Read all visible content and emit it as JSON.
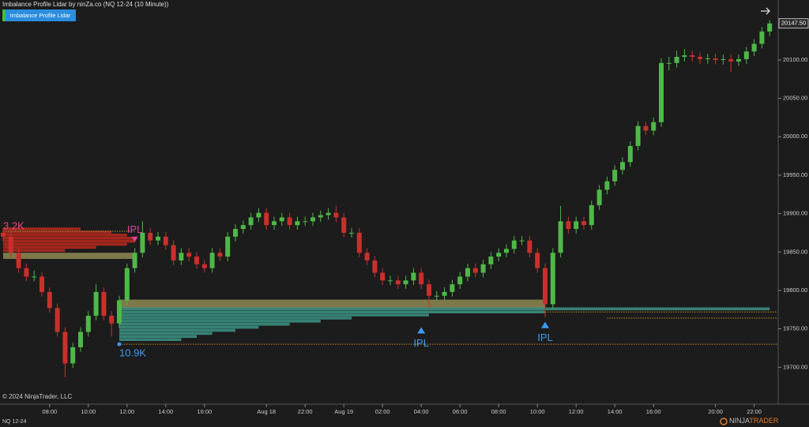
{
  "header": {
    "title": "Imbalance Profile Lidar by ninZa.co (NQ 12-24 (10 Minute))",
    "button": "Imbalance Profile Lidar"
  },
  "footer": {
    "copyright": "© 2024 NinjaTrader, LLC",
    "instrument": "NQ 12-24",
    "logo": [
      "NINJA",
      "TRADER"
    ]
  },
  "chart_data": {
    "type": "candlestick",
    "up_color": "#4fb848",
    "down_color": "#c9302c",
    "ylim": [
      19652,
      20178
    ],
    "yticks": [
      {
        "value": 19700,
        "label": "19700.00"
      },
      {
        "value": 19750,
        "label": "19750.00"
      },
      {
        "value": 19800,
        "label": "19800.00"
      },
      {
        "value": 19850,
        "label": "19850.00"
      },
      {
        "value": 19900,
        "label": "19900.00"
      },
      {
        "value": 19950,
        "label": "19950.00"
      },
      {
        "value": 20000,
        "label": "20000.00"
      },
      {
        "value": 20050,
        "label": "20050.00"
      },
      {
        "value": 20100,
        "label": "20100.00"
      }
    ],
    "last_price": {
      "value": 20147.5,
      "label": "20147.50"
    },
    "categories": [
      null,
      null,
      null,
      null,
      null,
      null,
      "08:00",
      null,
      null,
      null,
      null,
      "10:00",
      null,
      null,
      null,
      null,
      "12:00",
      null,
      null,
      null,
      null,
      "14:00",
      null,
      null,
      null,
      null,
      "16:00",
      null,
      null,
      null,
      null,
      null,
      null,
      null,
      "Aug 18",
      null,
      null,
      null,
      null,
      "22:00",
      null,
      null,
      null,
      null,
      "Aug 19",
      null,
      null,
      null,
      null,
      "02:00",
      null,
      null,
      null,
      null,
      "04:00",
      null,
      null,
      null,
      null,
      "06:00",
      null,
      null,
      null,
      null,
      "08:00",
      null,
      null,
      null,
      null,
      "10:00",
      null,
      null,
      null,
      null,
      "12:00",
      null,
      null,
      null,
      null,
      "14:00",
      null,
      null,
      null,
      null,
      "16:00",
      null,
      null,
      null,
      null,
      null,
      null,
      null,
      "20:00",
      null,
      null,
      null,
      null,
      "22:00",
      null,
      null
    ],
    "open": [
      19875,
      19870,
      19849,
      19829,
      19818,
      19818,
      19798,
      19777,
      19746,
      19705,
      19726,
      19746,
      19767,
      19798,
      19767,
      19757,
      19787,
      19829,
      19849,
      19875,
      19865,
      19870,
      19859,
      19839,
      19849,
      19844,
      19834,
      19829,
      19849,
      19844,
      19870,
      19880,
      19885,
      19895,
      19901,
      19885,
      19890,
      19895,
      19885,
      19890,
      19890,
      19895,
      19898,
      19901,
      19895,
      19875,
      19875,
      19849,
      19839,
      19823,
      19813,
      19813,
      19808,
      19813,
      19823,
      19808,
      19793,
      19793,
      19798,
      19808,
      19818,
      19829,
      19823,
      19834,
      19844,
      19849,
      19854,
      19865,
      19865,
      19849,
      19829,
      19782,
      19849,
      19890,
      19880,
      19890,
      19885,
      19911,
      19931,
      19942,
      19957,
      19967,
      19988,
      20014,
      20008,
      20019,
      20096,
      20096,
      20104,
      20106,
      20104,
      20101,
      20102,
      20100,
      20101,
      20098,
      20101,
      20111,
      20121,
      20137
    ],
    "high": [
      19881,
      19876,
      19855,
      19835,
      19826,
      19824,
      19804,
      19783,
      19752,
      19732,
      19752,
      19773,
      19808,
      19804,
      19773,
      19793,
      19835,
      19855,
      19890,
      19881,
      19876,
      19876,
      19865,
      19855,
      19855,
      19850,
      19840,
      19855,
      19855,
      19876,
      19886,
      19891,
      19901,
      19907,
      19907,
      19896,
      19901,
      19901,
      19896,
      19896,
      19901,
      19904,
      19907,
      19910,
      19901,
      19881,
      19881,
      19855,
      19845,
      19829,
      19819,
      19819,
      19819,
      19829,
      19829,
      19814,
      19799,
      19804,
      19814,
      19824,
      19835,
      19835,
      19840,
      19850,
      19855,
      19860,
      19871,
      19871,
      19871,
      19855,
      19835,
      19855,
      19910,
      19896,
      19896,
      19896,
      19917,
      19937,
      19948,
      19963,
      19973,
      19994,
      20020,
      20020,
      20025,
      20102,
      20104,
      20112,
      20114,
      20112,
      20110,
      20108,
      20108,
      20107,
      20107,
      20107,
      20117,
      20127,
      20143,
      20152
    ],
    "low": [
      19864,
      19843,
      19823,
      19812,
      19812,
      19792,
      19771,
      19740,
      19687,
      19699,
      19720,
      19740,
      19761,
      19761,
      19740,
      19751,
      19781,
      19823,
      19843,
      19859,
      19859,
      19853,
      19833,
      19833,
      19838,
      19828,
      19823,
      19823,
      19838,
      19838,
      19864,
      19874,
      19879,
      19889,
      19879,
      19879,
      19884,
      19879,
      19879,
      19884,
      19884,
      19889,
      19892,
      19889,
      19869,
      19869,
      19843,
      19833,
      19817,
      19807,
      19807,
      19802,
      19802,
      19807,
      19802,
      19777,
      19787,
      19787,
      19792,
      19802,
      19812,
      19817,
      19817,
      19828,
      19838,
      19843,
      19848,
      19859,
      19843,
      19823,
      19765,
      19776,
      19843,
      19874,
      19874,
      19879,
      19879,
      19905,
      19925,
      19936,
      19951,
      19961,
      19982,
      20002,
      20002,
      20013,
      20086,
      20090,
      20098,
      20098,
      20095,
      20095,
      20094,
      20094,
      20084,
      20092,
      20095,
      20105,
      20115,
      20131
    ],
    "close": [
      19870,
      19849,
      19829,
      19818,
      19818,
      19798,
      19777,
      19746,
      19705,
      19726,
      19746,
      19767,
      19798,
      19767,
      19757,
      19787,
      19829,
      19849,
      19875,
      19865,
      19870,
      19859,
      19839,
      19849,
      19844,
      19834,
      19829,
      19849,
      19844,
      19870,
      19880,
      19885,
      19895,
      19901,
      19885,
      19890,
      19895,
      19885,
      19890,
      19890,
      19895,
      19898,
      19901,
      19895,
      19875,
      19875,
      19849,
      19839,
      19823,
      19813,
      19813,
      19808,
      19813,
      19823,
      19808,
      19793,
      19793,
      19798,
      19808,
      19818,
      19829,
      19823,
      19834,
      19844,
      19849,
      19854,
      19865,
      19865,
      19849,
      19829,
      19782,
      19849,
      19890,
      19880,
      19890,
      19885,
      19911,
      19931,
      19942,
      19957,
      19967,
      19988,
      20014,
      20008,
      20019,
      20096,
      20096,
      20104,
      20106,
      20104,
      20101,
      20102,
      20100,
      20101,
      20098,
      20101,
      20111,
      20121,
      20137,
      20147.5
    ],
    "profiles": [
      {
        "start": 0,
        "color": "#c42a1e",
        "levels": [
          19880,
          19876,
          19872,
          19868,
          19864,
          19860,
          19856,
          19852
        ],
        "lengths": [
          10,
          14,
          16,
          17,
          17,
          16,
          12,
          8
        ]
      },
      {
        "start": 15,
        "color": "#3f9c8c",
        "levels": [
          19776,
          19772,
          19768,
          19764,
          19760,
          19756,
          19752,
          19748,
          19744,
          19740,
          19736
        ],
        "lengths": [
          84,
          55,
          40,
          30,
          26,
          22,
          18,
          15,
          12,
          10,
          8
        ]
      }
    ],
    "zones": [
      {
        "x": [
          0,
          17
        ],
        "y": [
          19841,
          19849
        ],
        "color": "#8f8a52"
      },
      {
        "x": [
          15,
          70
        ],
        "y": [
          19777,
          19788
        ],
        "color": "#8f8a52"
      }
    ],
    "levels": [
      {
        "x": [
          0,
          17
        ],
        "y": 19877,
        "color": "#9a9a3a"
      },
      {
        "x": [
          15,
          100
        ],
        "y": 19730,
        "color": "#c08a2a"
      },
      {
        "x": [
          78,
          100
        ],
        "y": 19764,
        "color": "#c08a2a"
      },
      {
        "x": [
          70,
          100
        ],
        "y": 19772,
        "color": "#c08a2a"
      }
    ],
    "annotations": [
      {
        "text": "3.2K",
        "x": 0,
        "y": 19883,
        "color": "#e8457f"
      },
      {
        "text": "IPL",
        "x": 17,
        "y": 19866,
        "color": "#e0409a",
        "marker": "down"
      },
      {
        "text": "10.9K",
        "x": 15,
        "y": 19730,
        "color": "#3a9bf0",
        "marker": "dot"
      },
      {
        "text": "IPL",
        "x": 54,
        "y": 19748,
        "color": "#3a9bf0",
        "marker": "up"
      },
      {
        "text": "IPL",
        "x": 70,
        "y": 19755,
        "color": "#3a9bf0",
        "marker": "up"
      }
    ]
  }
}
